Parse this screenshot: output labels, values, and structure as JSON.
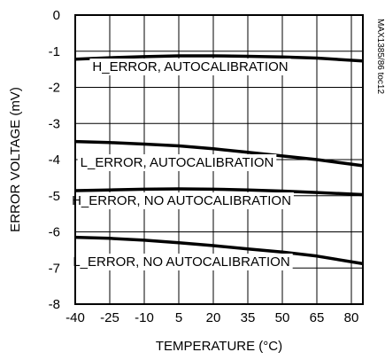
{
  "chart_data": {
    "type": "line",
    "xlabel": "TEMPERATURE (°C)",
    "ylabel": "ERROR VOLTAGE (mV)",
    "side_note": "MAX1385/86 toc12",
    "xlim": [
      -40,
      85
    ],
    "ylim": [
      -8,
      0
    ],
    "x_ticks": [
      "-40",
      "-25",
      "-10",
      "5",
      "20",
      "35",
      "50",
      "65",
      "80"
    ],
    "y_ticks": [
      "0",
      "-1",
      "-2",
      "-3",
      "-4",
      "-5",
      "-6",
      "-7",
      "-8"
    ],
    "grid": true,
    "series": [
      {
        "name": "H_ERROR, AUTOCALIBRATION",
        "x": [
          -40,
          -25,
          -10,
          5,
          20,
          35,
          50,
          65,
          85
        ],
        "y": [
          -1.22,
          -1.18,
          -1.15,
          -1.13,
          -1.13,
          -1.14,
          -1.16,
          -1.19,
          -1.27
        ]
      },
      {
        "name": "L_ERROR, AUTOCALIBRATION",
        "x": [
          -40,
          -25,
          -10,
          5,
          20,
          35,
          50,
          65,
          85
        ],
        "y": [
          -3.5,
          -3.53,
          -3.57,
          -3.62,
          -3.7,
          -3.8,
          -3.9,
          -4.0,
          -4.17
        ]
      },
      {
        "name": "H_ERROR, NO AUTOCALIBRATION",
        "x": [
          -40,
          -25,
          -10,
          5,
          20,
          35,
          50,
          65,
          85
        ],
        "y": [
          -4.86,
          -4.84,
          -4.82,
          -4.81,
          -4.82,
          -4.84,
          -4.87,
          -4.91,
          -4.97
        ]
      },
      {
        "name": "L_ERROR, NO AUTOCALIBRATION",
        "x": [
          -40,
          -25,
          -10,
          5,
          20,
          35,
          50,
          65,
          85
        ],
        "y": [
          -6.15,
          -6.18,
          -6.23,
          -6.3,
          -6.38,
          -6.47,
          -6.56,
          -6.67,
          -6.88
        ]
      }
    ]
  }
}
